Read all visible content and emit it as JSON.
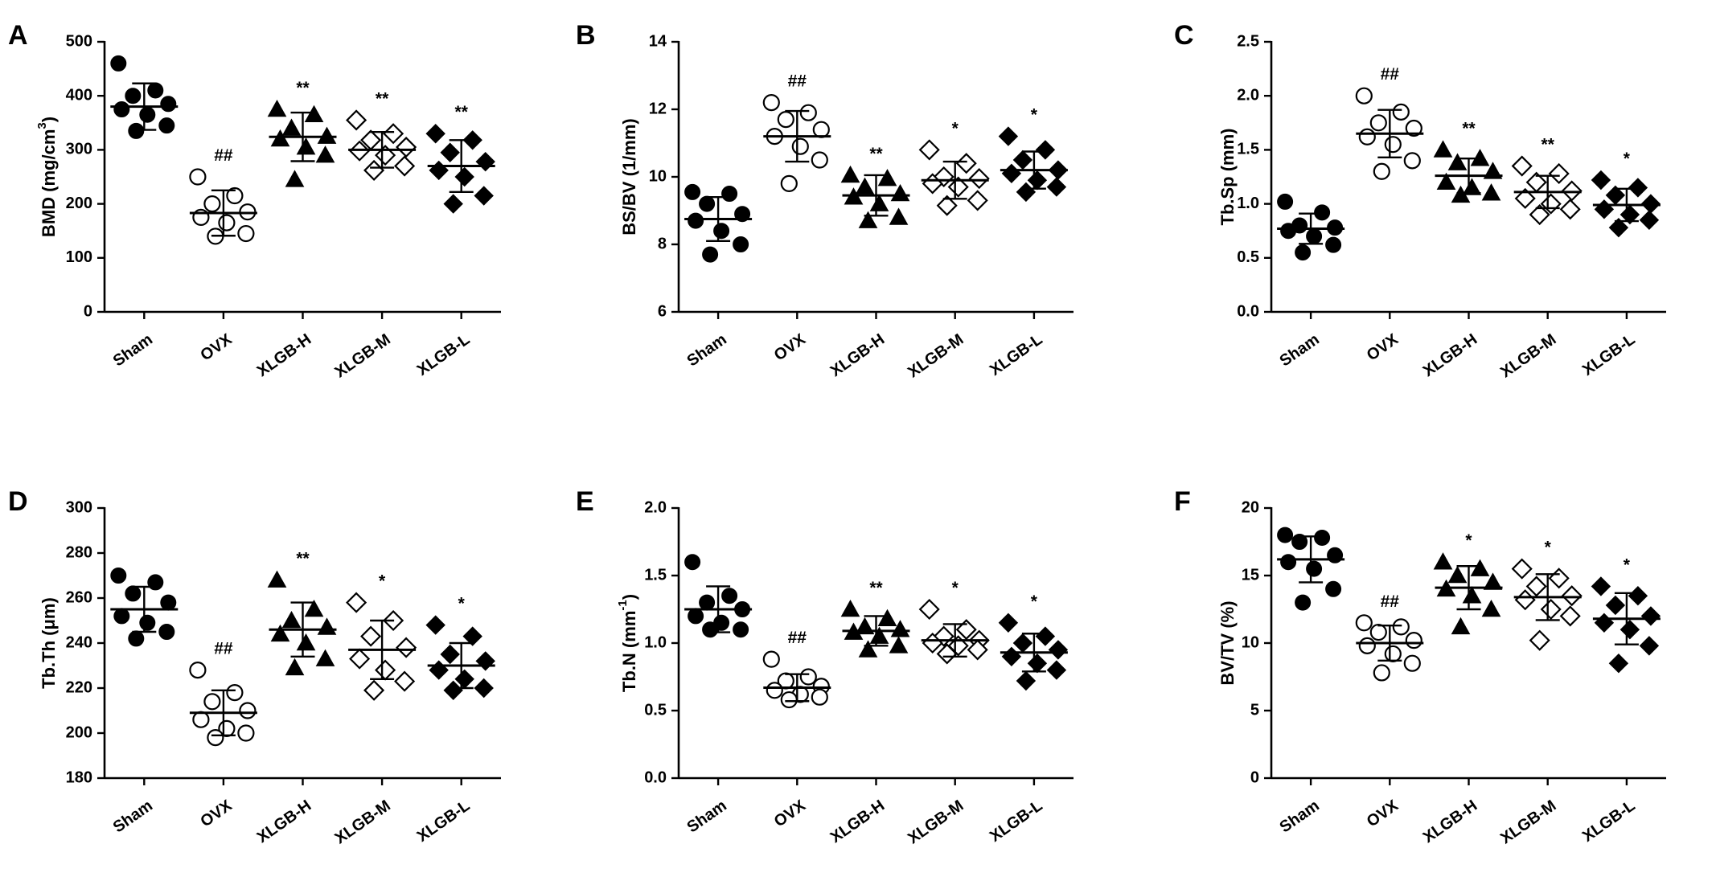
{
  "figure": {
    "background": "#ffffff",
    "ink": "#000000"
  },
  "chart_data": [
    {
      "panel": "A",
      "type": "scatter",
      "ylabel": "BMD (mg/cm",
      "ylabel_sup": "3",
      "ylabel_end": ")",
      "ylim": [
        0,
        500
      ],
      "yticks": [
        0,
        100,
        200,
        300,
        400,
        500
      ],
      "ytick_labels": [
        "0",
        "100",
        "200",
        "300",
        "400",
        "500"
      ],
      "categories": [
        "Sham",
        "OVX",
        "XLGB-H",
        "XLGB-M",
        "XLGB-L"
      ],
      "markers": [
        "circle-filled",
        "circle-open",
        "triangle-filled",
        "diamond-open",
        "diamond-filled"
      ],
      "annotations": [
        "",
        "##",
        "**",
        "**",
        "**"
      ],
      "groups": [
        {
          "name": "Sham",
          "mean": 380,
          "sd": 43,
          "points": [
            460,
            410,
            400,
            385,
            375,
            365,
            345,
            335
          ]
        },
        {
          "name": "OVX",
          "mean": 183,
          "sd": 42,
          "points": [
            250,
            215,
            200,
            185,
            175,
            165,
            145,
            140
          ]
        },
        {
          "name": "XLGB-H",
          "mean": 324,
          "sd": 45,
          "points": [
            375,
            365,
            340,
            325,
            320,
            305,
            290,
            245
          ]
        },
        {
          "name": "XLGB-M",
          "mean": 300,
          "sd": 33,
          "points": [
            355,
            330,
            318,
            305,
            298,
            290,
            270,
            262
          ]
        },
        {
          "name": "XLGB-L",
          "mean": 270,
          "sd": 48,
          "points": [
            330,
            318,
            295,
            278,
            262,
            250,
            215,
            200
          ]
        }
      ]
    },
    {
      "panel": "B",
      "type": "scatter",
      "ylabel": "BS/BV (1/mm)",
      "ylabel_sup": "",
      "ylabel_end": "",
      "ylim": [
        6,
        14
      ],
      "yticks": [
        6,
        8,
        10,
        12,
        14
      ],
      "ytick_labels": [
        "6",
        "8",
        "10",
        "12",
        "14"
      ],
      "categories": [
        "Sham",
        "OVX",
        "XLGB-H",
        "XLGB-M",
        "XLGB-L"
      ],
      "markers": [
        "circle-filled",
        "circle-open",
        "triangle-filled",
        "diamond-open",
        "diamond-filled"
      ],
      "annotations": [
        "",
        "##",
        "**",
        "*",
        "*"
      ],
      "groups": [
        {
          "name": "Sham",
          "mean": 8.75,
          "sd": 0.65,
          "points": [
            9.55,
            9.5,
            9.2,
            8.9,
            8.7,
            8.4,
            8.0,
            7.7
          ]
        },
        {
          "name": "OVX",
          "mean": 11.2,
          "sd": 0.75,
          "points": [
            12.2,
            11.9,
            11.7,
            11.4,
            11.2,
            10.9,
            10.5,
            9.8
          ]
        },
        {
          "name": "XLGB-H",
          "mean": 9.45,
          "sd": 0.6,
          "points": [
            10.05,
            9.95,
            9.7,
            9.5,
            9.4,
            9.2,
            8.8,
            8.7
          ]
        },
        {
          "name": "XLGB-M",
          "mean": 9.9,
          "sd": 0.55,
          "points": [
            10.8,
            10.4,
            10.0,
            9.95,
            9.8,
            9.7,
            9.3,
            9.15
          ]
        },
        {
          "name": "XLGB-L",
          "mean": 10.2,
          "sd": 0.55,
          "points": [
            11.2,
            10.8,
            10.5,
            10.2,
            10.1,
            9.9,
            9.7,
            9.55
          ]
        }
      ]
    },
    {
      "panel": "C",
      "type": "scatter",
      "ylabel": "Tb.Sp (mm)",
      "ylabel_sup": "",
      "ylabel_end": "",
      "ylim": [
        0,
        2.5
      ],
      "yticks": [
        0,
        0.5,
        1,
        1.5,
        2,
        2.5
      ],
      "ytick_labels": [
        "0.0",
        "0.5",
        "1.0",
        "1.5",
        "2.0",
        "2.5"
      ],
      "categories": [
        "Sham",
        "OVX",
        "XLGB-H",
        "XLGB-M",
        "XLGB-L"
      ],
      "markers": [
        "circle-filled",
        "circle-open",
        "triangle-filled",
        "diamond-open",
        "diamond-filled"
      ],
      "annotations": [
        "",
        "##",
        "**",
        "**",
        "*"
      ],
      "groups": [
        {
          "name": "Sham",
          "mean": 0.77,
          "sd": 0.14,
          "points": [
            1.02,
            0.92,
            0.8,
            0.78,
            0.75,
            0.7,
            0.62,
            0.55
          ]
        },
        {
          "name": "OVX",
          "mean": 1.65,
          "sd": 0.22,
          "points": [
            2.0,
            1.85,
            1.75,
            1.7,
            1.62,
            1.55,
            1.4,
            1.3
          ]
        },
        {
          "name": "XLGB-H",
          "mean": 1.26,
          "sd": 0.16,
          "points": [
            1.5,
            1.42,
            1.38,
            1.3,
            1.2,
            1.15,
            1.1,
            1.08
          ]
        },
        {
          "name": "XLGB-M",
          "mean": 1.11,
          "sd": 0.15,
          "points": [
            1.35,
            1.28,
            1.2,
            1.12,
            1.05,
            1.0,
            0.95,
            0.9
          ]
        },
        {
          "name": "XLGB-L",
          "mean": 0.99,
          "sd": 0.15,
          "points": [
            1.22,
            1.15,
            1.08,
            1.0,
            0.95,
            0.9,
            0.85,
            0.78
          ]
        }
      ]
    },
    {
      "panel": "D",
      "type": "scatter",
      "ylabel": "Tb.Th (μm)",
      "ylabel_sup": "",
      "ylabel_end": "",
      "ylim": [
        180,
        300
      ],
      "yticks": [
        180,
        200,
        220,
        240,
        260,
        280,
        300
      ],
      "ytick_labels": [
        "180",
        "200",
        "220",
        "240",
        "260",
        "280",
        "300"
      ],
      "categories": [
        "Sham",
        "OVX",
        "XLGB-H",
        "XLGB-M",
        "XLGB-L"
      ],
      "markers": [
        "circle-filled",
        "circle-open",
        "triangle-filled",
        "diamond-open",
        "diamond-filled"
      ],
      "annotations": [
        "",
        "##",
        "**",
        "*",
        "*"
      ],
      "groups": [
        {
          "name": "Sham",
          "mean": 255,
          "sd": 10,
          "points": [
            270,
            267,
            262,
            258,
            252,
            249,
            245,
            242
          ]
        },
        {
          "name": "OVX",
          "mean": 209,
          "sd": 10,
          "points": [
            228,
            218,
            214,
            210,
            206,
            202,
            200,
            198
          ]
        },
        {
          "name": "XLGB-H",
          "mean": 246,
          "sd": 12,
          "points": [
            268,
            255,
            250,
            247,
            244,
            240,
            233,
            229
          ]
        },
        {
          "name": "XLGB-M",
          "mean": 237,
          "sd": 13,
          "points": [
            258,
            250,
            243,
            238,
            233,
            228,
            223,
            219
          ]
        },
        {
          "name": "XLGB-L",
          "mean": 230,
          "sd": 10,
          "points": [
            248,
            243,
            235,
            232,
            228,
            224,
            220,
            219
          ]
        }
      ]
    },
    {
      "panel": "E",
      "type": "scatter",
      "ylabel": "Tb.N (mm",
      "ylabel_sup": "-1",
      "ylabel_end": ")",
      "ylim": [
        0,
        2
      ],
      "yticks": [
        0,
        0.5,
        1,
        1.5,
        2
      ],
      "ytick_labels": [
        "0.0",
        "0.5",
        "1.0",
        "1.5",
        "2.0"
      ],
      "categories": [
        "Sham",
        "OVX",
        "XLGB-H",
        "XLGB-M",
        "XLGB-L"
      ],
      "markers": [
        "circle-filled",
        "circle-open",
        "triangle-filled",
        "diamond-open",
        "diamond-filled"
      ],
      "annotations": [
        "",
        "##",
        "**",
        "*",
        "*"
      ],
      "groups": [
        {
          "name": "Sham",
          "mean": 1.25,
          "sd": 0.17,
          "points": [
            1.6,
            1.35,
            1.3,
            1.25,
            1.2,
            1.15,
            1.1,
            1.1
          ]
        },
        {
          "name": "OVX",
          "mean": 0.67,
          "sd": 0.1,
          "points": [
            0.88,
            0.75,
            0.72,
            0.68,
            0.65,
            0.62,
            0.6,
            0.58
          ]
        },
        {
          "name": "XLGB-H",
          "mean": 1.09,
          "sd": 0.11,
          "points": [
            1.25,
            1.18,
            1.12,
            1.1,
            1.08,
            1.05,
            0.98,
            0.95
          ]
        },
        {
          "name": "XLGB-M",
          "mean": 1.02,
          "sd": 0.12,
          "points": [
            1.25,
            1.1,
            1.05,
            1.02,
            1.0,
            0.98,
            0.95,
            0.92
          ]
        },
        {
          "name": "XLGB-L",
          "mean": 0.93,
          "sd": 0.14,
          "points": [
            1.15,
            1.05,
            1.0,
            0.95,
            0.9,
            0.85,
            0.8,
            0.72
          ]
        }
      ]
    },
    {
      "panel": "F",
      "type": "scatter",
      "ylabel": "BV/TV (%)",
      "ylabel_sup": "",
      "ylabel_end": "",
      "ylim": [
        0,
        20
      ],
      "yticks": [
        0,
        5,
        10,
        15,
        20
      ],
      "ytick_labels": [
        "0",
        "5",
        "10",
        "15",
        "20"
      ],
      "categories": [
        "Sham",
        "OVX",
        "XLGB-H",
        "XLGB-M",
        "XLGB-L"
      ],
      "markers": [
        "circle-filled",
        "circle-open",
        "triangle-filled",
        "diamond-open",
        "diamond-filled"
      ],
      "annotations": [
        "",
        "##",
        "*",
        "*",
        "*"
      ],
      "groups": [
        {
          "name": "Sham",
          "mean": 16.2,
          "sd": 1.7,
          "points": [
            18.0,
            17.8,
            17.5,
            16.5,
            16.0,
            15.5,
            14.0,
            13.0
          ]
        },
        {
          "name": "OVX",
          "mean": 10.0,
          "sd": 1.3,
          "points": [
            11.5,
            11.2,
            10.8,
            10.2,
            9.8,
            9.2,
            8.5,
            7.8
          ]
        },
        {
          "name": "XLGB-H",
          "mean": 14.1,
          "sd": 1.6,
          "points": [
            16.0,
            15.5,
            15.0,
            14.5,
            14.0,
            13.5,
            12.5,
            11.2
          ]
        },
        {
          "name": "XLGB-M",
          "mean": 13.4,
          "sd": 1.7,
          "points": [
            15.5,
            14.8,
            14.2,
            13.5,
            13.2,
            12.5,
            12.0,
            10.2
          ]
        },
        {
          "name": "XLGB-L",
          "mean": 11.8,
          "sd": 1.9,
          "points": [
            14.2,
            13.5,
            12.8,
            12.0,
            11.5,
            11.0,
            9.8,
            8.5
          ]
        }
      ]
    }
  ]
}
